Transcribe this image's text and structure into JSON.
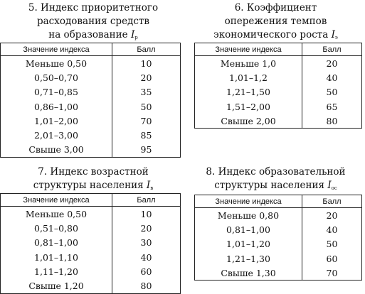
{
  "tables": [
    {
      "caption_line1": "5. Индекс приоритетного",
      "caption_line2": "расходования средств",
      "caption_line3": "на образование",
      "symbol": "I",
      "subscript": "р",
      "col_value": "Значение индекса",
      "col_points": "Балл",
      "rows": [
        {
          "value": "Меньше 0,50",
          "points": "10"
        },
        {
          "value": "0,50–0,70",
          "points": "20"
        },
        {
          "value": "0,71–0,85",
          "points": "35"
        },
        {
          "value": "0,86–1,00",
          "points": "50"
        },
        {
          "value": "1,01–2,00",
          "points": "70"
        },
        {
          "value": "2,01–3,00",
          "points": "85"
        },
        {
          "value": "Свыше 3,00",
          "points": "95"
        }
      ]
    },
    {
      "caption_line1": "6. Коэффициент",
      "caption_line2": "опережения темпов",
      "caption_line3": "экономического роста",
      "symbol": "I",
      "subscript": "э",
      "col_value": "Значение индекса",
      "col_points": "Балл",
      "rows": [
        {
          "value": "Меньше 1,0",
          "points": "20"
        },
        {
          "value": "1,01–1,2",
          "points": "40"
        },
        {
          "value": "1,21–1,50",
          "points": "50"
        },
        {
          "value": "1,51–2,00",
          "points": "65"
        },
        {
          "value": "Свыше 2,00",
          "points": "80"
        }
      ]
    },
    {
      "caption_line1": "7. Индекс возрастной",
      "caption_line2": "структуры населения",
      "symbol": "I",
      "subscript": "в",
      "col_value": "Значение индекса",
      "col_points": "Балл",
      "rows": [
        {
          "value": "Меньше 0,50",
          "points": "10"
        },
        {
          "value": "0,51–0,80",
          "points": "20"
        },
        {
          "value": "0,81–1,00",
          "points": "30"
        },
        {
          "value": "1,01–1,10",
          "points": "40"
        },
        {
          "value": "1,11–1,20",
          "points": "60"
        },
        {
          "value": "Свыше 1,20",
          "points": "80"
        }
      ]
    },
    {
      "caption_line1": "8. Индекс образовательной",
      "caption_line2": "структуры населения",
      "symbol": "I",
      "subscript": "ос",
      "col_value": "Значение индекса",
      "col_points": "Балл",
      "rows": [
        {
          "value": "Меньше 0,80",
          "points": "20"
        },
        {
          "value": "0,81–1,00",
          "points": "40"
        },
        {
          "value": "1,01–1,20",
          "points": "50"
        },
        {
          "value": "1,21–1,30",
          "points": "60"
        },
        {
          "value": "Свыше 1,30",
          "points": "70"
        }
      ]
    }
  ]
}
